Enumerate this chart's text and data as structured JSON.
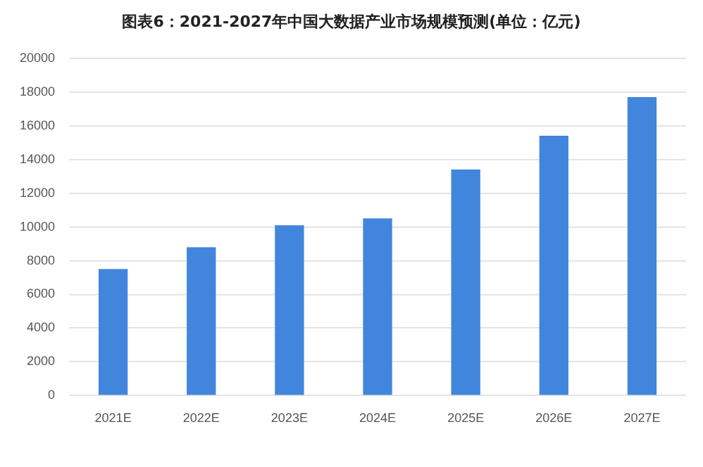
{
  "chart_data": {
    "type": "bar",
    "title": "图表6：2021-2027年中国大数据产业市场规模预测(单位：亿元)",
    "categories": [
      "2021E",
      "2022E",
      "2023E",
      "2024E",
      "2025E",
      "2026E",
      "2027E"
    ],
    "values": [
      7500,
      8800,
      10100,
      10500,
      13400,
      15400,
      17700
    ],
    "color": "#4285dc",
    "ylim": [
      0,
      20000
    ],
    "yticks": [
      0,
      2000,
      4000,
      6000,
      8000,
      10000,
      12000,
      14000,
      16000,
      18000,
      20000
    ],
    "grid": "y",
    "legend": false
  }
}
